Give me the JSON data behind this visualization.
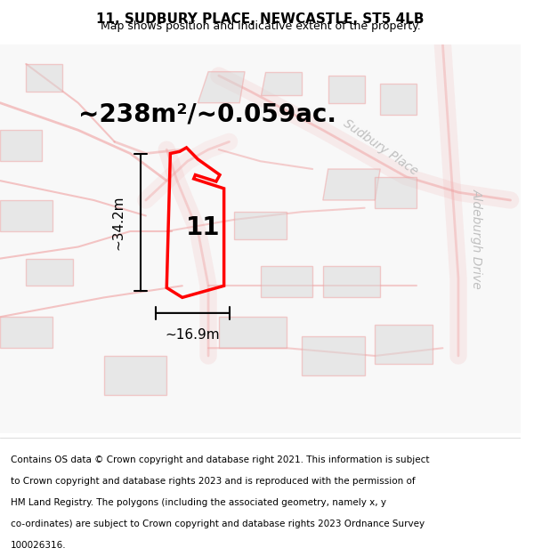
{
  "title": "11, SUDBURY PLACE, NEWCASTLE, ST5 4LB",
  "subtitle": "Map shows position and indicative extent of the property.",
  "area_text": "~238m²/~0.059ac.",
  "dim_width": "~16.9m",
  "dim_height": "~34.2m",
  "property_number": "11",
  "footer_lines": [
    "Contains OS data © Crown copyright and database right 2021. This information is subject",
    "to Crown copyright and database rights 2023 and is reproduced with the permission of",
    "HM Land Registry. The polygons (including the associated geometry, namely x, y",
    "co-ordinates) are subject to Crown copyright and database rights 2023 Ordnance Survey",
    "100026316."
  ],
  "bg_color": "#ffffff",
  "road_color": "#f0a0a0",
  "building_color": "#d8d8d8",
  "property_color": "#ff0000",
  "street_label_sudbury": "Sudbury Place",
  "street_label_aldeburgh": "Aldeburgh Drive",
  "title_fontsize": 11,
  "subtitle_fontsize": 9,
  "area_fontsize": 20,
  "footer_fontsize": 7.5
}
